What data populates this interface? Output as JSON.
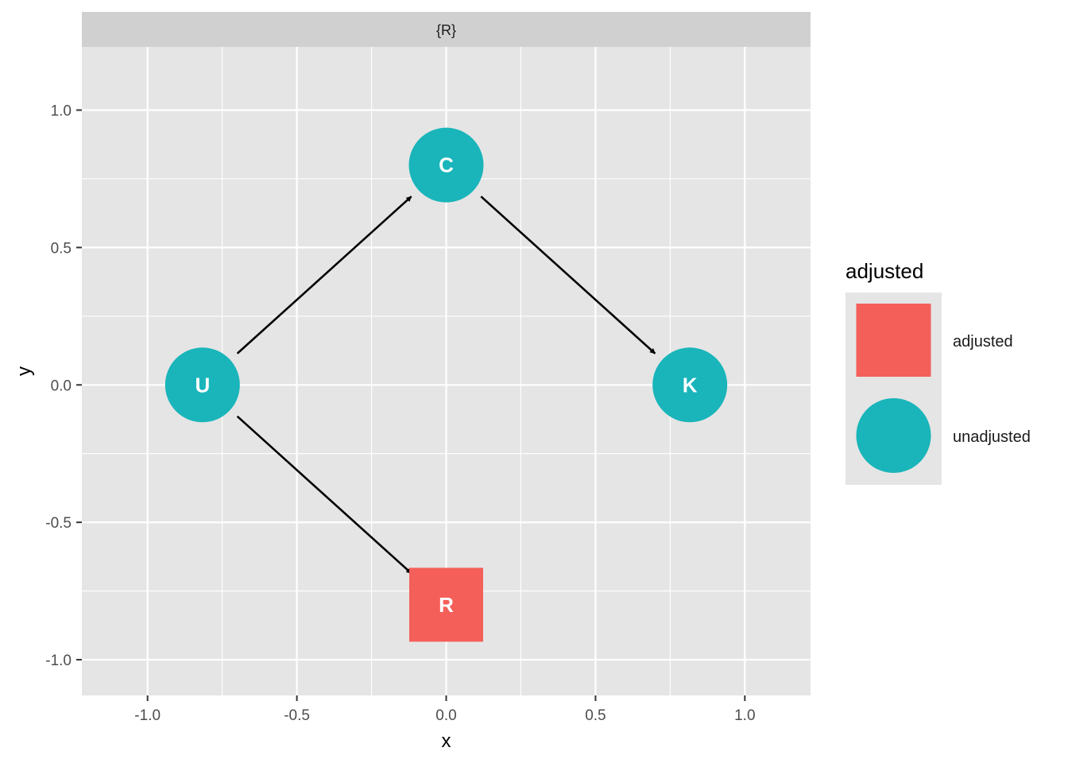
{
  "chart_data": {
    "type": "scatter",
    "facet_label": "{R}",
    "xlabel": "x",
    "ylabel": "y",
    "xlim": [
      -1.22,
      1.22
    ],
    "ylim": [
      -1.13,
      1.23
    ],
    "x_ticks": [
      -1.0,
      -0.5,
      0.0,
      0.5,
      1.0
    ],
    "x_tick_labels": [
      "-1.0",
      "-0.5",
      "0.0",
      "0.5",
      "1.0"
    ],
    "y_ticks": [
      -1.0,
      -0.5,
      0.0,
      0.5,
      1.0
    ],
    "y_tick_labels": [
      "-1.0",
      "-0.5",
      "0.0",
      "0.5",
      "1.0"
    ],
    "grid": true,
    "nodes": [
      {
        "name": "C",
        "x": 0.0,
        "y": 0.8,
        "status": "unadjusted"
      },
      {
        "name": "U",
        "x": -0.816,
        "y": 0.0,
        "status": "unadjusted"
      },
      {
        "name": "K",
        "x": 0.816,
        "y": 0.0,
        "status": "unadjusted"
      },
      {
        "name": "R",
        "x": 0.0,
        "y": -0.8,
        "status": "adjusted"
      }
    ],
    "edges": [
      {
        "from": "U",
        "to": "C"
      },
      {
        "from": "C",
        "to": "K"
      },
      {
        "from": "U",
        "to": "R"
      }
    ],
    "legend": {
      "title": "adjusted",
      "placement": "right",
      "entries": [
        {
          "label": "adjusted",
          "shape": "square",
          "color": "#F45F5A"
        },
        {
          "label": "unadjusted",
          "shape": "circle",
          "color": "#19B5BA"
        }
      ]
    },
    "colors": {
      "panel": "#E5E5E5",
      "strip": "#D0D0D0",
      "grid": "#FFFFFF",
      "edge": "#000000",
      "node_label": "#FFFFFF",
      "axis_text": "#4D4D4D"
    }
  }
}
